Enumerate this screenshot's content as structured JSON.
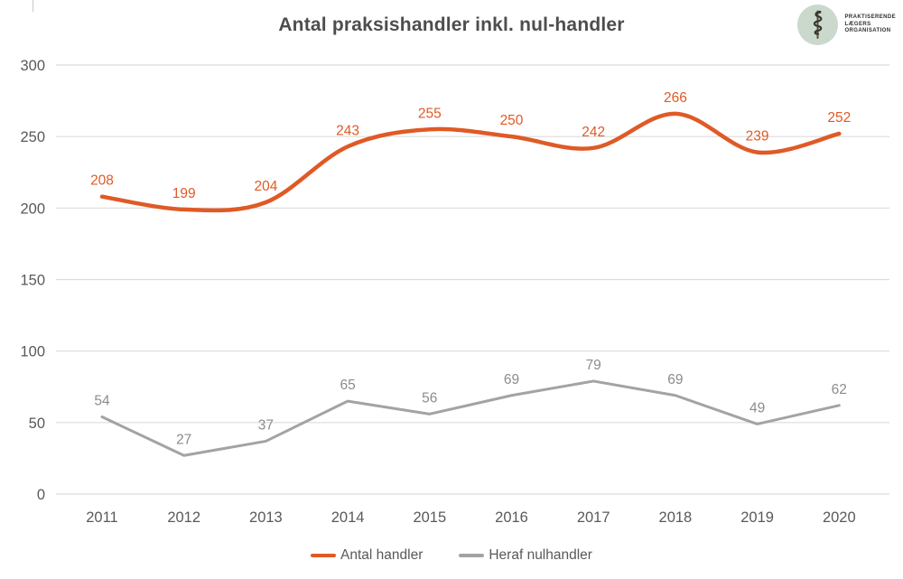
{
  "chart_data": {
    "type": "line",
    "title": "Antal praksishandler inkl. nul-handler",
    "categories": [
      "2011",
      "2012",
      "2013",
      "2014",
      "2015",
      "2016",
      "2017",
      "2018",
      "2019",
      "2020"
    ],
    "series": [
      {
        "name": "Antal handler",
        "color": "#DF5A26",
        "label_color": "#DF5A26",
        "smooth": true,
        "stroke_width": 4.5,
        "values": [
          208,
          199,
          204,
          243,
          255,
          250,
          242,
          266,
          239,
          252
        ]
      },
      {
        "name": "Heraf nulhandler",
        "color": "#A3A3A3",
        "label_color": "#8C8C8C",
        "smooth": false,
        "stroke_width": 3,
        "values": [
          54,
          27,
          37,
          65,
          56,
          69,
          79,
          69,
          49,
          62
        ]
      }
    ],
    "xlabel": "",
    "ylabel": "",
    "ylim": [
      0,
      300
    ],
    "yticks": [
      0,
      50,
      100,
      150,
      200,
      250,
      300
    ],
    "grid": true,
    "data_labels": true,
    "legend_position": "bottom"
  },
  "logo": {
    "org_name_lines": [
      "Praktiserende",
      "Lægers",
      "Organisation"
    ],
    "icon": "asclepius-staff-icon",
    "circle_color": "#cbd9cd",
    "staff_color": "#6b4a32",
    "snake_color": "#2f3a31"
  },
  "colors": {
    "background": "#ffffff",
    "title_text": "#4d4d4d",
    "axis_labels": "#595959",
    "gridline": "#dcdcdc",
    "legend_text": "#595959"
  }
}
